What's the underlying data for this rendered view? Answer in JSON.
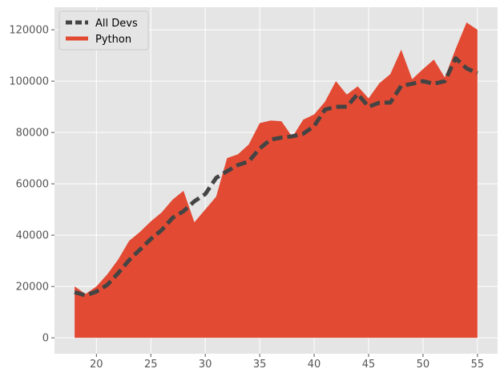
{
  "chart_data": {
    "type": "area",
    "style": "ggplot",
    "grid": true,
    "legend_position": "top-left",
    "xlim": [
      16.15,
      56.85
    ],
    "ylim": [
      -6200,
      128800
    ],
    "x_ticks": [
      20,
      25,
      30,
      35,
      40,
      45,
      50,
      55
    ],
    "y_ticks": [
      0,
      20000,
      40000,
      60000,
      80000,
      100000,
      120000
    ],
    "x": [
      18,
      19,
      20,
      21,
      22,
      23,
      24,
      25,
      26,
      27,
      28,
      29,
      30,
      31,
      32,
      33,
      34,
      35,
      36,
      37,
      38,
      39,
      40,
      41,
      42,
      43,
      44,
      45,
      46,
      47,
      48,
      49,
      50,
      51,
      52,
      53,
      54,
      55
    ],
    "series": [
      {
        "name": "All Devs",
        "kind": "line",
        "style": "dashed",
        "color": "#444444",
        "values": [
          17784,
          16500,
          18012,
          20628,
          25206,
          30252,
          34368,
          38496,
          42000,
          46752,
          49320,
          53200,
          56000,
          62316,
          64928,
          67317,
          68748,
          73752,
          77232,
          78000,
          78508,
          79536,
          82488,
          88935,
          90000,
          90056,
          95000,
          90000,
          91633,
          91660,
          98150,
          98964,
          100000,
          98988,
          100000,
          108923,
          105000,
          103117
        ]
      },
      {
        "name": "Python",
        "kind": "area",
        "color": "#E24A33",
        "values": [
          20046,
          17100,
          20000,
          24744,
          30500,
          37732,
          41247,
          45372,
          48876,
          53850,
          57287,
          45000,
          50000,
          55000,
          70000,
          71496,
          75370,
          83640,
          84666,
          84392,
          78254,
          85000,
          87038,
          91991,
          100000,
          94796,
          97962,
          93302,
          99240,
          102736,
          112285,
          100771,
          104708,
          108423,
          101407,
          112542,
          122870,
          120000
        ]
      }
    ]
  }
}
